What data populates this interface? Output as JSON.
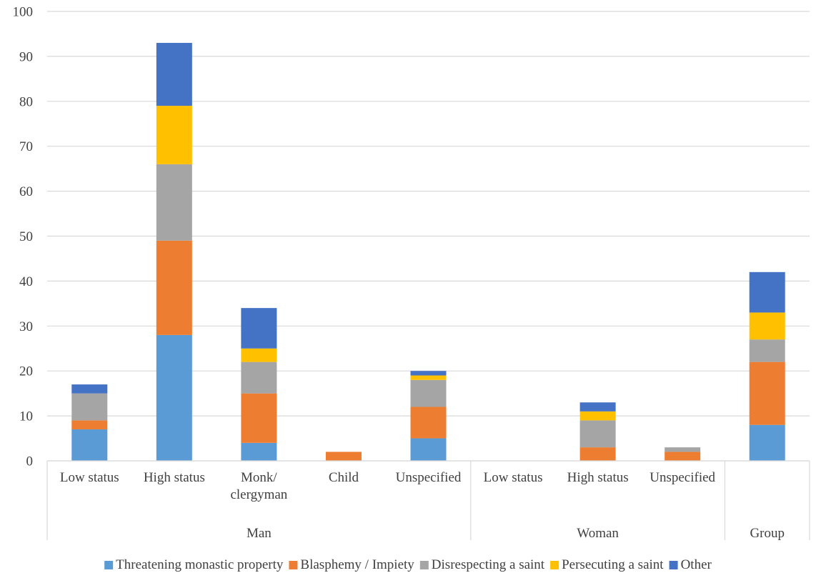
{
  "chart_data": {
    "type": "bar",
    "stacked": true,
    "ylim": [
      0,
      100
    ],
    "yticks": [
      0,
      10,
      20,
      30,
      40,
      50,
      60,
      70,
      80,
      90,
      100
    ],
    "grid": true,
    "legend_position": "bottom",
    "categories": [
      {
        "label": "Low status",
        "group": "Man"
      },
      {
        "label": "High status",
        "group": "Man"
      },
      {
        "label": "Monk/ clergyman",
        "group": "Man"
      },
      {
        "label": "Child",
        "group": "Man"
      },
      {
        "label": "Unspecified",
        "group": "Man"
      },
      {
        "label": "Low status",
        "group": "Woman"
      },
      {
        "label": "High status",
        "group": "Woman"
      },
      {
        "label": "Unspecified",
        "group": "Woman"
      },
      {
        "label": "",
        "group": "Group"
      }
    ],
    "groups": [
      "Man",
      "Woman",
      "Group"
    ],
    "series": [
      {
        "name": "Threatening monastic property",
        "color": "#5B9BD5",
        "values": [
          7,
          28,
          4,
          0,
          5,
          0,
          0,
          0,
          8
        ]
      },
      {
        "name": "Blasphemy / Impiety",
        "color": "#ED7D31",
        "values": [
          2,
          21,
          11,
          2,
          7,
          0,
          3,
          2,
          14
        ]
      },
      {
        "name": "Disrespecting a saint",
        "color": "#A5A5A5",
        "values": [
          6,
          17,
          7,
          0,
          6,
          0,
          6,
          1,
          5
        ]
      },
      {
        "name": "Persecuting a saint",
        "color": "#FFC000",
        "values": [
          0,
          13,
          3,
          0,
          1,
          0,
          2,
          0,
          6
        ]
      },
      {
        "name": "Other",
        "color": "#4472C4",
        "values": [
          2,
          14,
          9,
          0,
          1,
          0,
          2,
          0,
          9
        ]
      }
    ]
  }
}
